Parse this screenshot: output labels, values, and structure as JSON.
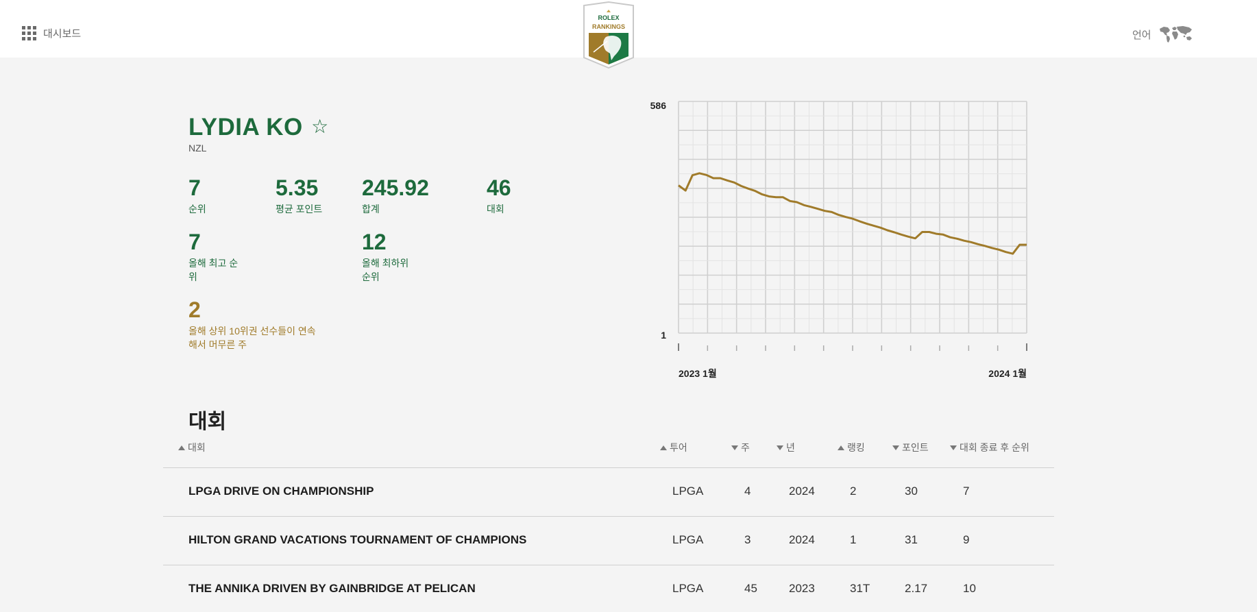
{
  "header": {
    "dashboard_label": "대시보드",
    "language_label": "언어",
    "logo_text_top": "ROLEX",
    "logo_text_bottom": "RANKINGS"
  },
  "player": {
    "name": "LYDIA KO",
    "country": "NZL",
    "stats": [
      {
        "value": "7",
        "label": "순위"
      },
      {
        "value": "5.35",
        "label": "평균 포인트"
      },
      {
        "value": "245.92",
        "label": "합계"
      },
      {
        "value": "46",
        "label": "대회"
      },
      {
        "value": "7",
        "label_line1": "올해 최고 순",
        "label_line2": "위"
      },
      {
        "value": "12",
        "label_line1": "올해 최하위",
        "label_line2": "순위"
      },
      {
        "value": "2",
        "label_line1": "올해 상위 10위권 선수들이 연속",
        "label_line2": "해서 머무른 주"
      }
    ]
  },
  "chart_data": {
    "type": "line",
    "y_top_label": "586",
    "y_bottom_label": "1",
    "x_start_label": "2023 1월",
    "x_end_label": "2024 1월",
    "color": "#a07b2a",
    "note_scale": "top of axis labelled 586, bottom labelled 1",
    "series": [
      {
        "values": [
          5.1,
          4.92,
          5.45,
          5.52,
          5.46,
          5.35,
          5.35,
          5.27,
          5.2,
          5.08,
          4.99,
          4.91,
          4.79,
          4.72,
          4.69,
          4.69,
          4.56,
          4.52,
          4.42,
          4.36,
          4.29,
          4.22,
          4.18,
          4.08,
          4.01,
          3.95,
          3.86,
          3.78,
          3.71,
          3.64,
          3.55,
          3.48,
          3.4,
          3.33,
          3.27,
          3.49,
          3.49,
          3.43,
          3.4,
          3.31,
          3.26,
          3.19,
          3.14,
          3.07,
          3.01,
          2.94,
          2.88,
          2.8,
          2.74,
          3.05,
          3.05
        ]
      }
    ],
    "grid": true
  },
  "section": {
    "title": "대회"
  },
  "table": {
    "headers": [
      {
        "label": "대회",
        "sort": "up"
      },
      {
        "label": "투어",
        "sort": "up"
      },
      {
        "label": "주",
        "sort": "down"
      },
      {
        "label": "년",
        "sort": "down"
      },
      {
        "label": "랭킹",
        "sort": "up"
      },
      {
        "label": "포인트",
        "sort": "down"
      },
      {
        "label": "대회 종료 후 순위",
        "sort": "down"
      }
    ],
    "rows": [
      {
        "event": "LPGA DRIVE ON CHAMPIONSHIP",
        "tour": "LPGA",
        "week": "4",
        "year": "2024",
        "rank": "2",
        "points": "30",
        "rank_after": "7"
      },
      {
        "event": "HILTON GRAND VACATIONS TOURNAMENT OF CHAMPIONS",
        "tour": "LPGA",
        "week": "3",
        "year": "2024",
        "rank": "1",
        "points": "31",
        "rank_after": "9"
      },
      {
        "event": "THE ANNIKA DRIVEN BY GAINBRIDGE AT PELICAN",
        "tour": "LPGA",
        "week": "45",
        "year": "2023",
        "rank": "31T",
        "points": "2.17",
        "rank_after": "10"
      }
    ]
  }
}
